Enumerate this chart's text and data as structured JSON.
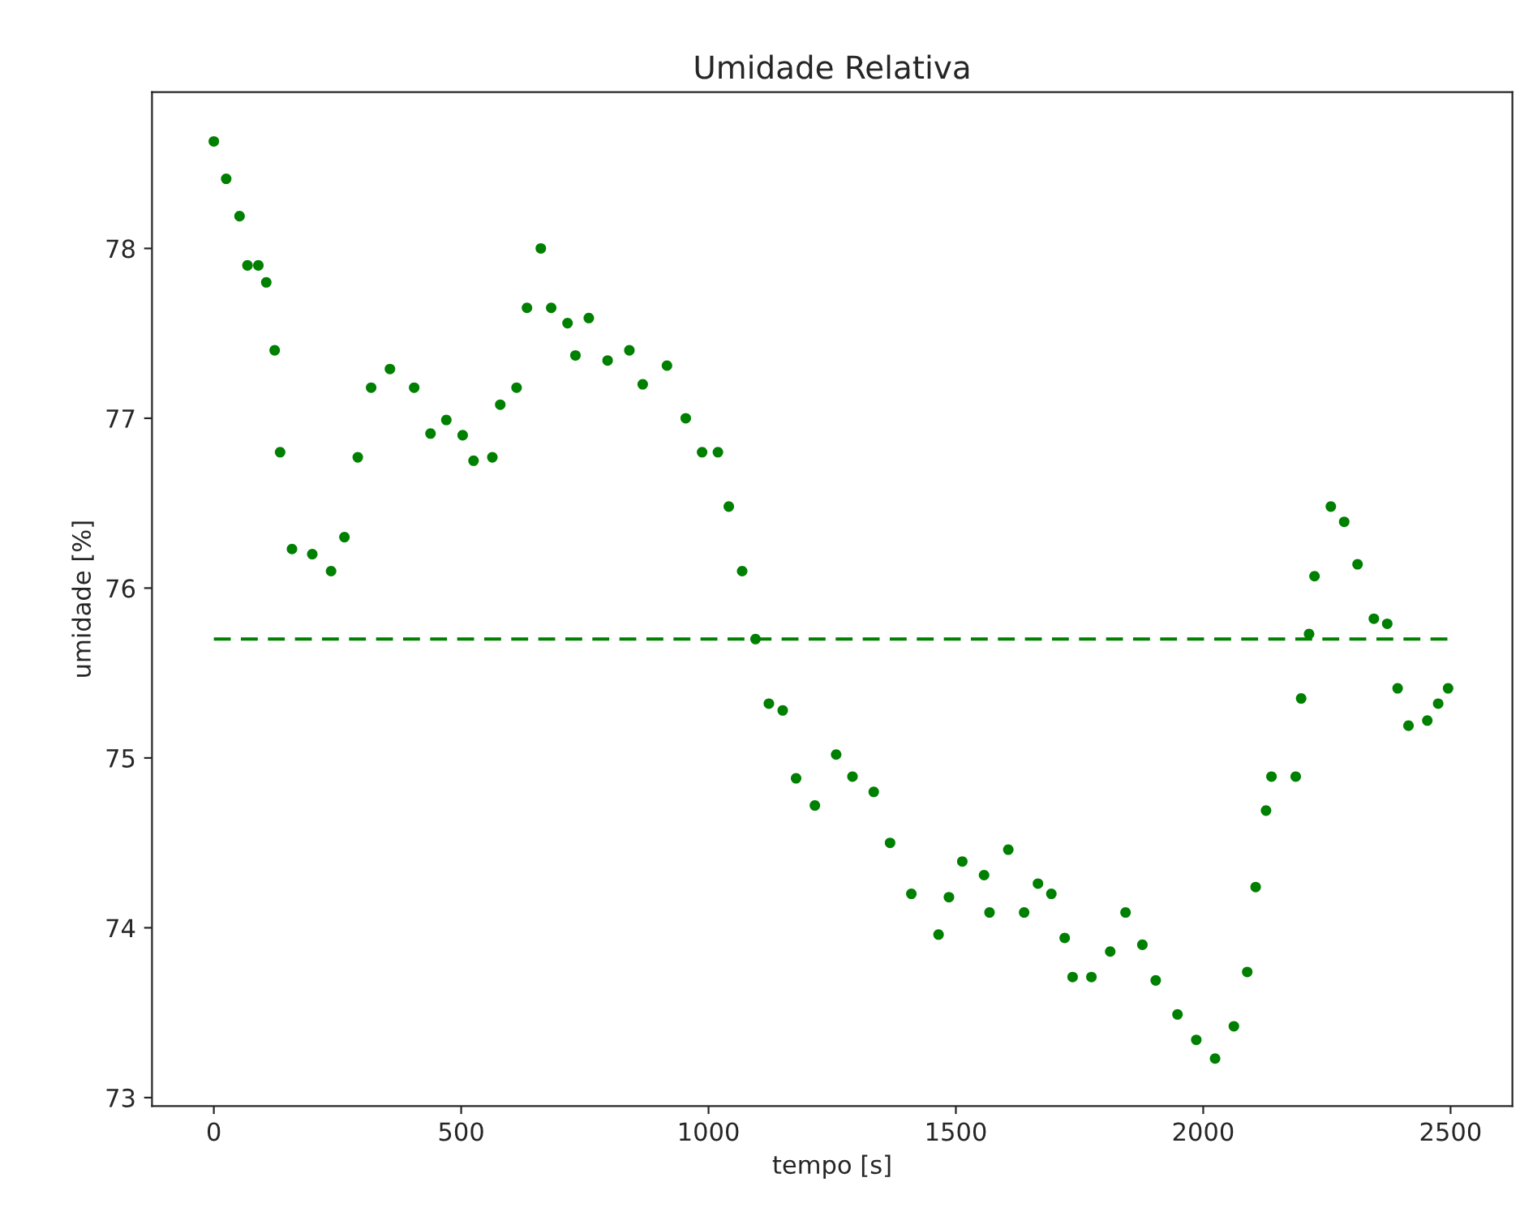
{
  "chart_data": {
    "type": "scatter",
    "title": "Umidade Relativa",
    "xlabel": "tempo [s]",
    "ylabel": "umidade [%]",
    "x": [
      0,
      25,
      52,
      68,
      90,
      106,
      123,
      134,
      158,
      199,
      237,
      264,
      291,
      318,
      356,
      405,
      438,
      470,
      503,
      525,
      563,
      579,
      612,
      633,
      661,
      682,
      715,
      731,
      758,
      796,
      840,
      867,
      916,
      954,
      987,
      1019,
      1041,
      1068,
      1095,
      1122,
      1150,
      1177,
      1215,
      1258,
      1291,
      1334,
      1367,
      1410,
      1465,
      1486,
      1513,
      1557,
      1568,
      1606,
      1638,
      1666,
      1693,
      1720,
      1736,
      1774,
      1812,
      1843,
      1877,
      1904,
      1948,
      1986,
      2024,
      2062,
      2089,
      2106,
      2127,
      2138,
      2187,
      2198,
      2214,
      2225,
      2258,
      2285,
      2312,
      2345,
      2372,
      2393,
      2415,
      2453,
      2475,
      2495
    ],
    "series": [
      {
        "color": "#008000",
        "values": [
          78.63,
          78.41,
          78.19,
          77.9,
          77.9,
          77.8,
          77.4,
          76.8,
          76.23,
          76.2,
          76.1,
          76.3,
          76.77,
          77.18,
          77.29,
          77.18,
          76.91,
          76.99,
          76.9,
          76.75,
          76.77,
          77.08,
          77.18,
          77.65,
          78.0,
          77.65,
          77.56,
          77.37,
          77.59,
          77.34,
          77.4,
          77.2,
          77.31,
          77.0,
          76.8,
          76.8,
          76.48,
          76.1,
          75.7,
          75.32,
          75.28,
          74.88,
          74.72,
          75.02,
          74.89,
          74.8,
          74.5,
          74.2,
          73.96,
          74.18,
          74.39,
          74.31,
          74.09,
          74.46,
          74.09,
          74.26,
          74.2,
          73.94,
          73.71,
          73.71,
          73.86,
          74.09,
          73.9,
          73.69,
          73.49,
          73.34,
          73.23,
          73.42,
          73.74,
          74.24,
          74.69,
          74.89,
          74.89,
          75.35,
          75.73,
          76.07,
          76.48,
          76.39,
          76.14,
          75.82,
          75.79,
          75.41,
          75.19,
          75.22,
          75.32,
          75.41
        ]
      }
    ],
    "marker": "circle",
    "ref_lines": [
      {
        "axis": "y",
        "value": 75.7,
        "color": "#008000",
        "line_style": "dashed"
      }
    ],
    "xlim": [
      -125,
      2625
    ],
    "ylim": [
      72.95,
      78.92
    ],
    "xticks": [
      0,
      500,
      1000,
      1500,
      2000,
      2500
    ],
    "yticks": [
      73,
      74,
      75,
      76,
      77,
      78
    ],
    "grid": false,
    "legend": false
  }
}
